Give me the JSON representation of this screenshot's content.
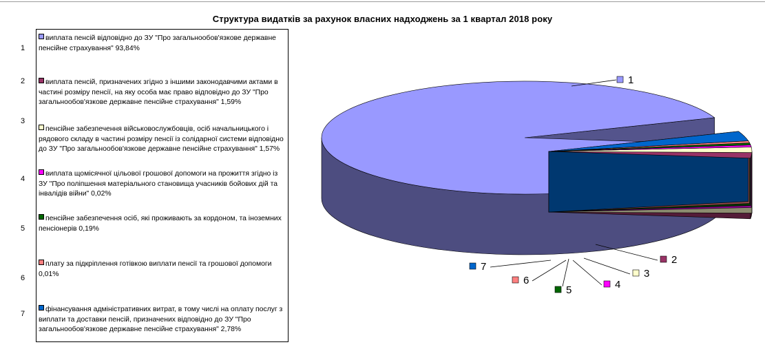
{
  "chart_data": {
    "type": "pie",
    "title": "Структура видатків за рахунок власних надходжень за 1 квартал 2018 року",
    "legend_position": "left",
    "slices": [
      {
        "number": "1",
        "label": "виплата пенсій відповідно до ЗУ \"Про загальнообов'язкове державне пенсійне страхування\"   93,84%",
        "value": 93.84,
        "color": "#9999ff"
      },
      {
        "number": "2",
        "label": "виплата пенсій, призначених згідно з іншими законодавчими актами в частині розміру пенсії, на яку особа має право відповідно до ЗУ \"Про загальнообов'язкове державне пенсійне страхування\"  1,59%",
        "value": 1.59,
        "color": "#993366"
      },
      {
        "number": "3",
        "label": "пенсійне забезпечення військовослужбовців, осіб начальницького і рядового складу в частині розміру пенсії із солідарної системи відповідно до ЗУ \"Про загальнообов'язкове державне пенсійне страхування\"   1,57%",
        "value": 1.57,
        "color": "#ffffcc"
      },
      {
        "number": "4",
        "label": "виплата щомісячної цільової грошової допомоги на прожиття згідно із ЗУ \"Про поліпшення матеріального становища учасників бойових дій та інвалідів війни\"  0,02%",
        "value": 0.02,
        "color": "#ff00ff"
      },
      {
        "number": "5",
        "label": "пенсійне забезпечення осіб, які проживають за кордоном, та іноземних пенсіонерів  0,19%",
        "value": 0.19,
        "color": "#006600"
      },
      {
        "number": "6",
        "label": "плату за підкріплення готівкою виплати пенсії та грошової допомоги   0,01%",
        "value": 0.01,
        "color": "#ff8080"
      },
      {
        "number": "7",
        "label": "фінансування адміністративних витрат, в тому числі на оплату послуг з виплати та доставки пенсій, призначених відповідно до ЗУ \"Про загальнообов'язкове державне пенсійне страхування\"   2,78%",
        "value": 2.78,
        "color": "#0066cc"
      }
    ]
  }
}
